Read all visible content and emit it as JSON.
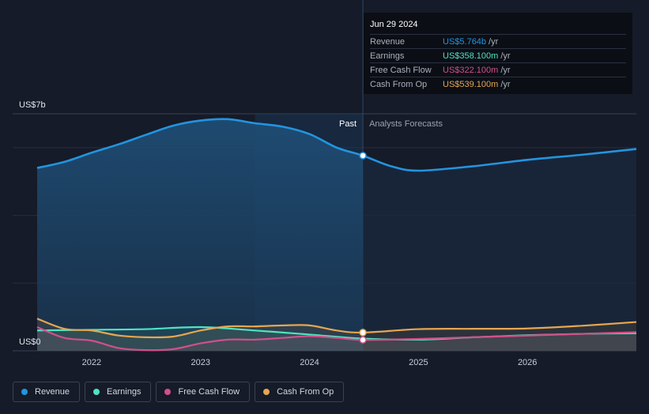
{
  "chart_data": {
    "type": "line",
    "y_unit_top": "US$7b",
    "y_unit_bottom": "US$0",
    "ylim": [
      0,
      7
    ],
    "x_ticks": [
      "2022",
      "2023",
      "2024",
      "2025",
      "2026"
    ],
    "past_label": "Past",
    "forecast_label": "Analysts Forecasts",
    "series": [
      {
        "name": "Revenue",
        "color": "#2394df",
        "x": [
          2021.5,
          2021.75,
          2022.0,
          2022.25,
          2022.5,
          2022.75,
          2023.0,
          2023.25,
          2023.5,
          2023.75,
          2024.0,
          2024.25,
          2024.49,
          2024.75,
          2025.0,
          2025.5,
          2026.0,
          2026.5,
          2027.0
        ],
        "values": [
          5.4,
          5.58,
          5.85,
          6.1,
          6.38,
          6.65,
          6.8,
          6.84,
          6.72,
          6.62,
          6.4,
          6.0,
          5.764,
          5.45,
          5.32,
          5.45,
          5.64,
          5.79,
          5.96
        ]
      },
      {
        "name": "Earnings",
        "color": "#4fe3c1",
        "x": [
          2021.5,
          2022.0,
          2022.5,
          2023.0,
          2023.5,
          2024.0,
          2024.49,
          2025.0,
          2025.5,
          2026.0,
          2026.5,
          2027.0
        ],
        "values": [
          0.6,
          0.62,
          0.64,
          0.7,
          0.6,
          0.48,
          0.358,
          0.33,
          0.4,
          0.46,
          0.5,
          0.52
        ]
      },
      {
        "name": "Free Cash Flow",
        "color": "#d0508a",
        "x": [
          2021.5,
          2021.75,
          2022.0,
          2022.25,
          2022.5,
          2022.75,
          2023.0,
          2023.25,
          2023.5,
          2023.75,
          2024.0,
          2024.25,
          2024.49,
          2025.0,
          2025.5,
          2026.0,
          2026.5,
          2027.0
        ],
        "values": [
          0.7,
          0.38,
          0.3,
          0.08,
          0.02,
          0.05,
          0.22,
          0.33,
          0.33,
          0.38,
          0.43,
          0.38,
          0.322,
          0.35,
          0.4,
          0.45,
          0.5,
          0.55
        ]
      },
      {
        "name": "Cash From Op",
        "color": "#e6a650",
        "x": [
          2021.5,
          2021.75,
          2022.0,
          2022.25,
          2022.5,
          2022.75,
          2023.0,
          2023.25,
          2023.5,
          2023.75,
          2024.0,
          2024.25,
          2024.49,
          2025.0,
          2025.5,
          2026.0,
          2026.5,
          2027.0
        ],
        "values": [
          0.95,
          0.65,
          0.6,
          0.45,
          0.4,
          0.42,
          0.6,
          0.72,
          0.72,
          0.75,
          0.75,
          0.6,
          0.539,
          0.64,
          0.65,
          0.66,
          0.74,
          0.85
        ]
      }
    ]
  },
  "tooltip": {
    "date": "Jun 29 2024",
    "rows": [
      {
        "label": "Revenue",
        "value": "US$5.764b",
        "unit": "/yr",
        "color": "#2394df"
      },
      {
        "label": "Earnings",
        "value": "US$358.100m",
        "unit": "/yr",
        "color": "#4fe3c1"
      },
      {
        "label": "Free Cash Flow",
        "value": "US$322.100m",
        "unit": "/yr",
        "color": "#d0508a"
      },
      {
        "label": "Cash From Op",
        "value": "US$539.100m",
        "unit": "/yr",
        "color": "#e6a650"
      }
    ]
  },
  "legend": [
    {
      "label": "Revenue",
      "color": "#2394df"
    },
    {
      "label": "Earnings",
      "color": "#4fe3c1"
    },
    {
      "label": "Free Cash Flow",
      "color": "#d0508a"
    },
    {
      "label": "Cash From Op",
      "color": "#e6a650"
    }
  ]
}
